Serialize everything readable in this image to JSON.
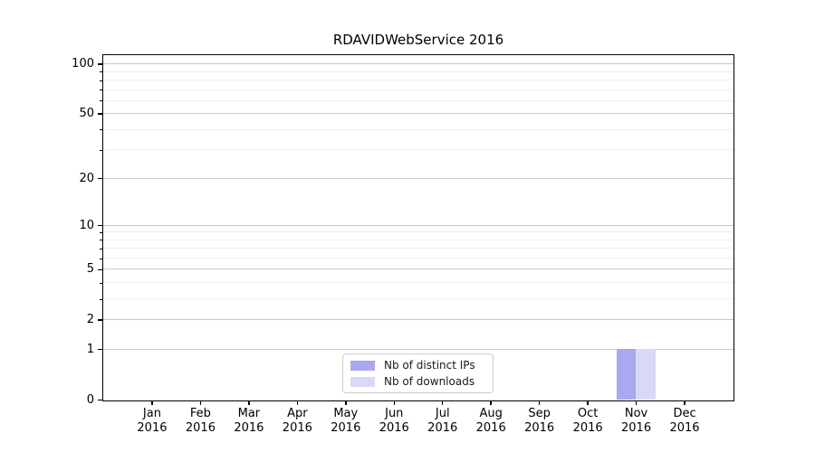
{
  "window": {
    "background": "#ffffff"
  },
  "chart_data": {
    "type": "bar",
    "title": "RDAVIDWebService 2016",
    "categories": [
      "Jan",
      "Feb",
      "Mar",
      "Apr",
      "May",
      "Jun",
      "Jul",
      "Aug",
      "Sep",
      "Oct",
      "Nov",
      "Dec"
    ],
    "category_year": "2016",
    "series": [
      {
        "name": "Nb of distinct IPs",
        "color": "#a9a9f0",
        "values": [
          0,
          0,
          0,
          0,
          0,
          0,
          0,
          0,
          0,
          0,
          1,
          0
        ]
      },
      {
        "name": "Nb of downloads",
        "color": "#d9d9f7",
        "values": [
          0,
          0,
          0,
          0,
          0,
          0,
          0,
          0,
          0,
          0,
          1,
          0
        ]
      }
    ],
    "yscale": "log1p",
    "ylim": [
      0,
      113
    ],
    "ytick_values": [
      0,
      1,
      2,
      5,
      10,
      20,
      50,
      100
    ],
    "ytick_labels": [
      "0",
      "1",
      "2",
      "5",
      "10",
      "20",
      "50",
      "100"
    ],
    "ytick_minor_values": [
      3,
      4,
      6,
      7,
      8,
      9,
      30,
      40,
      60,
      70,
      80,
      90
    ],
    "grid": "horizontal",
    "legend_position": "bottom-center",
    "colors": {
      "axis": "#000000",
      "text": "#000000",
      "grid_major": "#c9c9c9",
      "grid_minor": "#ededed",
      "legend_border": "#cccccc",
      "legend_background": "#ffffff"
    }
  }
}
